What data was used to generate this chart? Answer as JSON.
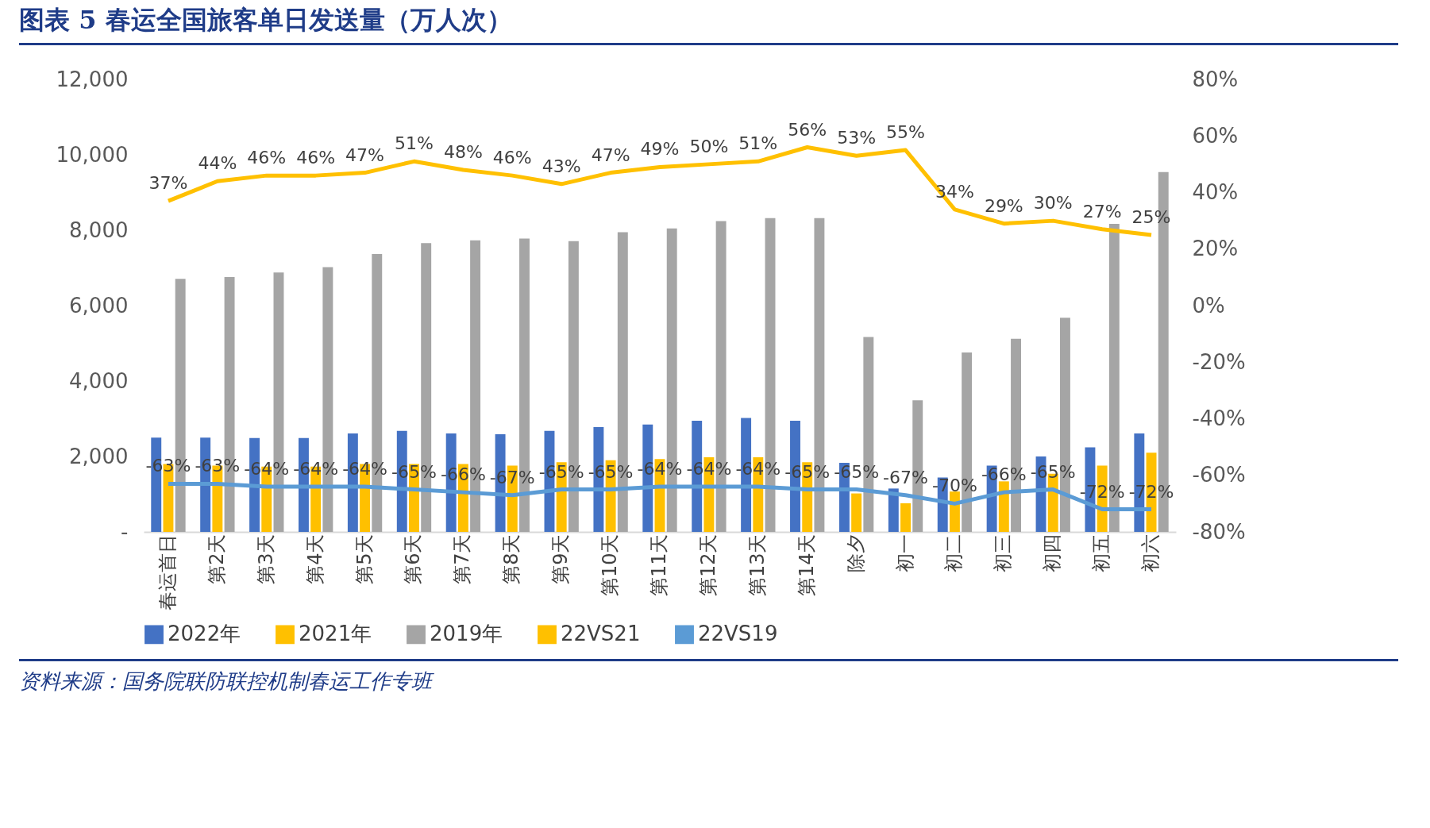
{
  "chart_data": {
    "type": "bar",
    "title": "图表 5   春运全国旅客单日发送量（万人次）",
    "categories": [
      "春运首日",
      "第2天",
      "第3天",
      "第4天",
      "第5天",
      "第6天",
      "第7天",
      "第8天",
      "第9天",
      "第10天",
      "第11天",
      "第12天",
      "第13天",
      "第14天",
      "除夕",
      "初一",
      "初二",
      "初三",
      "初四",
      "初五",
      "初六"
    ],
    "series": [
      {
        "name": "2022年",
        "color": "#4472c4",
        "values": [
          2500,
          2500,
          2490,
          2490,
          2610,
          2680,
          2610,
          2590,
          2680,
          2780,
          2850,
          2950,
          3020,
          2950,
          1830,
          1150,
          1440,
          1760,
          2000,
          2240,
          2610
        ]
      },
      {
        "name": "2021年",
        "color": "#ffc000",
        "values": [
          1800,
          1760,
          1730,
          1730,
          1800,
          1800,
          1800,
          1760,
          1850,
          1900,
          1930,
          1980,
          1980,
          1850,
          1020,
          760,
          1070,
          1340,
          1540,
          1760,
          2100
        ]
      },
      {
        "name": "2019年",
        "color": "#a5a5a5",
        "values": [
          6710,
          6760,
          6880,
          7020,
          7370,
          7660,
          7730,
          7780,
          7710,
          7950,
          8050,
          8240,
          8320,
          8320,
          5170,
          3490,
          4760,
          5120,
          5680,
          8170,
          9540
        ]
      },
      {
        "name": "22VS21",
        "type": "line",
        "axis": "y2",
        "color": "#ffc000",
        "values": [
          37,
          44,
          46,
          46,
          47,
          51,
          48,
          46,
          43,
          47,
          49,
          50,
          51,
          56,
          53,
          55,
          34,
          29,
          30,
          27,
          25
        ],
        "value_labels": [
          "37%",
          "44%",
          "46%",
          "46%",
          "47%",
          "51%",
          "48%",
          "46%",
          "43%",
          "47%",
          "49%",
          "50%",
          "51%",
          "56%",
          "53%",
          "55%",
          "34%",
          "29%",
          "30%",
          "27%",
          "25%"
        ]
      },
      {
        "name": "22VS19",
        "type": "line",
        "axis": "y2",
        "color": "#5b9bd5",
        "values": [
          -63,
          -63,
          -64,
          -64,
          -64,
          -65,
          -66,
          -67,
          -65,
          -65,
          -64,
          -64,
          -64,
          -65,
          -65,
          -67,
          -70,
          -66,
          -65,
          -72,
          -72
        ],
        "value_labels": [
          "-63%",
          "-63%",
          "-64%",
          "-64%",
          "-64%",
          "-65%",
          "-66%",
          "-67%",
          "-65%",
          "-65%",
          "-64%",
          "-64%",
          "-64%",
          "-65%",
          "-65%",
          "-67%",
          "-70%",
          "-66%",
          "-65%",
          "-72%",
          "-72%"
        ]
      }
    ],
    "ylim": [
      0,
      12000
    ],
    "yticks": [
      {
        "value": 0,
        "label": "-"
      },
      {
        "value": 2000,
        "label": "2,000"
      },
      {
        "value": 4000,
        "label": "4,000"
      },
      {
        "value": 6000,
        "label": "6,000"
      },
      {
        "value": 8000,
        "label": "8,000"
      },
      {
        "value": 10000,
        "label": "10,000"
      },
      {
        "value": 12000,
        "label": "12,000"
      }
    ],
    "y2lim": [
      -80,
      80
    ],
    "y2ticks": [
      {
        "value": -80,
        "label": "-80%"
      },
      {
        "value": -60,
        "label": "-60%"
      },
      {
        "value": -40,
        "label": "-40%"
      },
      {
        "value": -20,
        "label": "-20%"
      },
      {
        "value": 0,
        "label": "0%"
      },
      {
        "value": 20,
        "label": "20%"
      },
      {
        "value": 40,
        "label": "40%"
      },
      {
        "value": 60,
        "label": "60%"
      },
      {
        "value": 80,
        "label": "80%"
      }
    ],
    "legend": "bottom",
    "annotations": [
      "资料来源：国务院联防联控机制春运工作专班"
    ]
  }
}
